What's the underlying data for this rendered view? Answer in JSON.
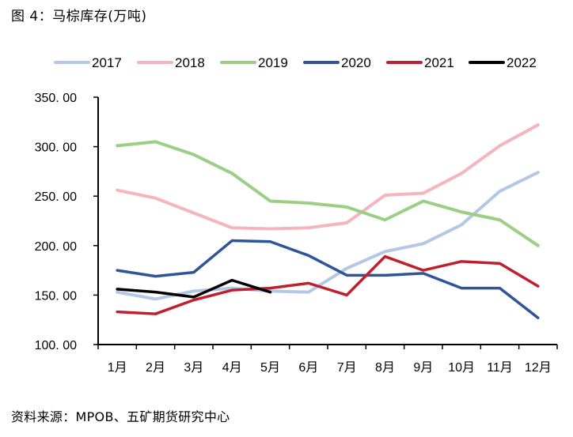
{
  "title": "图 4：马棕库存(万吨)",
  "source": "资料来源：MPOB、五矿期货研究中心",
  "chart_data": {
    "type": "line",
    "title": "马棕库存(万吨)",
    "xlabel": "",
    "ylabel": "",
    "categories": [
      "1月",
      "2月",
      "3月",
      "4月",
      "5月",
      "6月",
      "7月",
      "8月",
      "9月",
      "10月",
      "11月",
      "12月"
    ],
    "ylim": [
      100,
      350
    ],
    "yticks": [
      100,
      150,
      200,
      250,
      300,
      350
    ],
    "ytick_labels": [
      "100. 00",
      "150. 00",
      "200. 00",
      "250. 00",
      "300. 00",
      "350. 00"
    ],
    "grid": false,
    "legend_position": "top",
    "series": [
      {
        "name": "2017",
        "color": "#b4c7e7",
        "values": [
          153,
          146,
          154,
          157,
          154,
          153,
          177,
          194,
          202,
          221,
          255,
          274
        ]
      },
      {
        "name": "2018",
        "color": "#f4b6bc",
        "values": [
          256,
          248,
          233,
          218,
          217,
          218,
          223,
          251,
          253,
          273,
          301,
          322
        ]
      },
      {
        "name": "2019",
        "color": "#9dce85",
        "values": [
          301,
          305,
          292,
          273,
          245,
          243,
          239,
          226,
          245,
          234,
          226,
          200
        ]
      },
      {
        "name": "2020",
        "color": "#2f5597",
        "values": [
          175,
          169,
          173,
          205,
          204,
          190,
          170,
          170,
          172,
          157,
          157,
          127
        ]
      },
      {
        "name": "2021",
        "color": "#c0202e",
        "values": [
          133,
          131,
          145,
          155,
          157,
          162,
          150,
          189,
          175,
          184,
          182,
          159
        ]
      },
      {
        "name": "2022",
        "color": "#000000",
        "values": [
          156,
          153,
          148,
          165,
          153
        ]
      }
    ]
  }
}
